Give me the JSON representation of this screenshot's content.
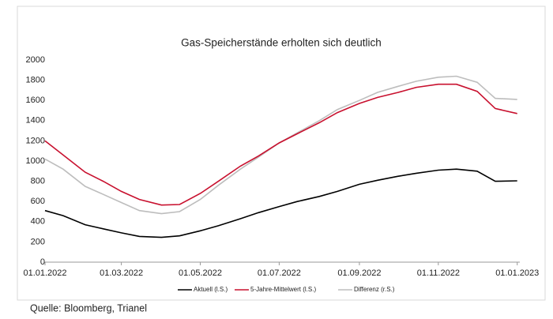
{
  "chart_data": {
    "type": "line",
    "title": "Gas-Speicherstände erholten sich deutlich",
    "source": "Quelle: Bloomberg, Trianel",
    "x": [
      "01.01.2022",
      "15.01.2022",
      "01.02.2022",
      "15.02.2022",
      "01.03.2022",
      "15.03.2022",
      "01.04.2022",
      "15.04.2022",
      "01.05.2022",
      "15.05.2022",
      "01.06.2022",
      "15.06.2022",
      "01.07.2022",
      "15.07.2022",
      "01.08.2022",
      "15.08.2022",
      "01.09.2022",
      "15.09.2022",
      "01.10.2022",
      "15.10.2022",
      "01.11.2022",
      "15.11.2022",
      "01.12.2022",
      "15.12.2022",
      "01.01.2023"
    ],
    "series": [
      {
        "name": "Aktuell (l.S.)",
        "color": "#000000",
        "values": [
          510,
          460,
          370,
          330,
          290,
          255,
          245,
          260,
          310,
          360,
          430,
          490,
          550,
          600,
          650,
          700,
          770,
          810,
          850,
          880,
          910,
          920,
          900,
          800,
          805
        ]
      },
      {
        "name": "5-Jahre-Mittelwert (l.S.)",
        "color": "#c8102e",
        "values": [
          1200,
          1060,
          890,
          800,
          700,
          620,
          565,
          570,
          680,
          800,
          950,
          1050,
          1180,
          1270,
          1380,
          1480,
          1570,
          1630,
          1680,
          1730,
          1760,
          1760,
          1690,
          1520,
          1470
        ]
      },
      {
        "name": "Differenz (r.S.)",
        "color": "#bdbdbd",
        "values": [
          1020,
          920,
          750,
          670,
          590,
          510,
          480,
          500,
          620,
          760,
          920,
          1040,
          1180,
          1280,
          1400,
          1510,
          1600,
          1680,
          1740,
          1790,
          1830,
          1840,
          1780,
          1620,
          1610
        ]
      }
    ],
    "xlim": [
      "01.01.2022",
      "03.01.2023"
    ],
    "xticks": [
      "01.01.2022",
      "01.03.2022",
      "01.05.2022",
      "01.07.2022",
      "01.09.2022",
      "01.11.2022",
      "01.01.2023"
    ],
    "ylim": [
      0,
      2000
    ],
    "yticks": [
      0,
      200,
      400,
      600,
      800,
      1000,
      1200,
      1400,
      1600,
      1800,
      2000
    ],
    "legend": "bottom",
    "grid": false
  }
}
